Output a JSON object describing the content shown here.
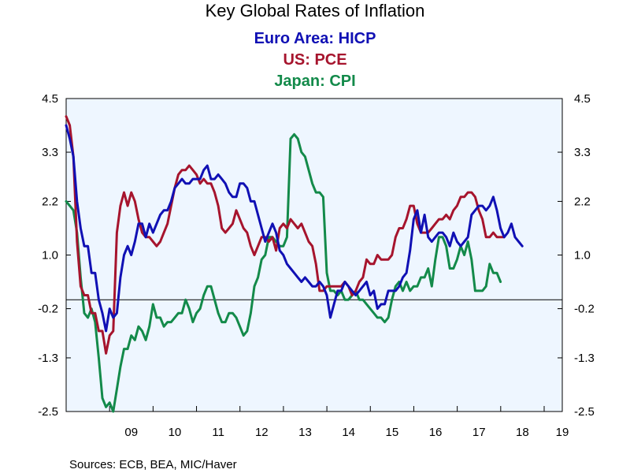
{
  "chart_data": {
    "type": "line",
    "title": "Key Global Rates of Inflation",
    "subtitles": [
      {
        "text": "Euro Area: HICP",
        "color": "#1010b4"
      },
      {
        "text": "US: PCE",
        "color": "#a6142d"
      },
      {
        "text": "Japan: CPI",
        "color": "#138a4a"
      }
    ],
    "source": "Sources:  ECB, BEA, MIC/Haver",
    "ylim": [
      -2.5,
      4.5
    ],
    "yticks": [
      "4.5",
      "3.3",
      "2.2",
      "1.0",
      "-0.2",
      "-1.3",
      "-2.5"
    ],
    "ytick_values": [
      4.5,
      3.3,
      2.2,
      1.0,
      -0.2,
      -1.3,
      -2.5
    ],
    "xlim": [
      2008.0,
      2019.417
    ],
    "xticks": [
      "09",
      "10",
      "11",
      "12",
      "13",
      "14",
      "15",
      "16",
      "17",
      "18",
      "19"
    ],
    "xtick_positions": [
      2009.5,
      2010.5,
      2011.5,
      2012.5,
      2013.5,
      2014.5,
      2015.5,
      2016.5,
      2017.5,
      2018.5,
      2019.417
    ],
    "zero_line": 0,
    "plot_background": "#eef6ff",
    "series": [
      {
        "name": "Euro Area: HICP",
        "color": "#1010b4",
        "start": 2008.0,
        "step": 0.0833,
        "values": [
          3.9,
          3.6,
          3.2,
          2.2,
          1.6,
          1.2,
          1.2,
          0.6,
          0.6,
          0.0,
          -0.3,
          -0.7,
          -0.2,
          -0.4,
          -0.3,
          0.5,
          1.0,
          1.2,
          1.0,
          1.3,
          1.7,
          1.7,
          1.4,
          1.7,
          1.5,
          1.7,
          1.9,
          2.0,
          2.0,
          2.2,
          2.5,
          2.6,
          2.7,
          2.6,
          2.6,
          2.7,
          2.7,
          2.7,
          2.9,
          3.0,
          2.7,
          2.7,
          2.8,
          2.7,
          2.6,
          2.4,
          2.3,
          2.3,
          2.6,
          2.6,
          2.5,
          2.2,
          2.2,
          1.9,
          1.6,
          1.3,
          1.5,
          1.7,
          1.5,
          1.1,
          1.0,
          0.8,
          0.7,
          0.6,
          0.5,
          0.4,
          0.5,
          0.4,
          0.3,
          0.3,
          0.4,
          0.3,
          0.1,
          -0.4,
          -0.1,
          0.2,
          0.2,
          0.4,
          0.3,
          0.2,
          0.1,
          0.2,
          0.3,
          0.4,
          0.1,
          0.2,
          -0.2,
          -0.1,
          -0.1,
          0.2,
          0.2,
          0.2,
          0.3,
          0.5,
          0.6,
          1.1,
          1.8,
          2.0,
          1.5,
          1.9,
          1.4,
          1.3,
          1.4,
          1.5,
          1.5,
          1.4,
          1.2,
          1.5,
          1.3,
          1.2,
          1.3,
          1.4,
          1.9,
          2.0,
          2.1,
          2.1,
          2.0,
          2.1,
          2.3,
          2.0,
          1.6,
          1.4,
          1.5,
          1.7,
          1.4,
          1.3,
          1.2
        ]
      },
      {
        "name": "US: PCE",
        "color": "#a6142d",
        "start": 2008.0,
        "step": 0.0833,
        "values": [
          4.1,
          3.9,
          3.2,
          1.3,
          0.3,
          0.1,
          0.1,
          -0.3,
          -0.3,
          -0.7,
          -0.7,
          -1.2,
          -0.8,
          -0.7,
          1.5,
          2.1,
          2.4,
          2.1,
          2.4,
          2.2,
          1.8,
          1.5,
          1.4,
          1.4,
          1.3,
          1.2,
          1.3,
          1.5,
          1.7,
          2.1,
          2.5,
          2.8,
          2.9,
          2.9,
          3.0,
          2.9,
          2.8,
          2.6,
          2.7,
          2.6,
          2.6,
          2.4,
          2.1,
          1.6,
          1.5,
          1.6,
          1.7,
          2.0,
          1.8,
          1.6,
          1.5,
          1.2,
          1.0,
          1.2,
          1.4,
          1.4,
          1.3,
          1.4,
          1.1,
          1.6,
          1.7,
          1.6,
          1.8,
          1.7,
          1.6,
          1.7,
          1.5,
          1.3,
          1.2,
          0.8,
          0.2,
          0.2,
          0.3,
          0.3,
          0.3,
          0.3,
          0.3,
          0.4,
          0.3,
          0.1,
          0.2,
          0.4,
          0.5,
          0.9,
          0.8,
          0.8,
          1.0,
          0.9,
          0.9,
          0.9,
          1.0,
          1.4,
          1.6,
          1.6,
          1.8,
          2.1,
          2.1,
          1.7,
          1.5,
          1.5,
          1.5,
          1.6,
          1.7,
          1.8,
          1.8,
          1.9,
          1.8,
          2.0,
          2.1,
          2.3,
          2.3,
          2.4,
          2.4,
          2.3,
          2.0,
          1.8,
          1.4,
          1.4,
          1.5,
          1.4,
          1.4,
          1.4
        ]
      },
      {
        "name": "Japan: CPI",
        "color": "#138a4a",
        "start": 2008.0,
        "step": 0.0833,
        "values": [
          2.2,
          2.1,
          2.0,
          1.5,
          0.5,
          -0.3,
          -0.4,
          -0.2,
          -0.5,
          -1.3,
          -2.2,
          -2.4,
          -2.3,
          -2.5,
          -2.0,
          -1.5,
          -1.1,
          -1.1,
          -0.8,
          -0.9,
          -0.6,
          -0.7,
          -0.9,
          -0.6,
          -0.1,
          -0.4,
          -0.4,
          -0.6,
          -0.5,
          -0.5,
          -0.4,
          -0.3,
          -0.3,
          0.0,
          -0.2,
          -0.5,
          -0.3,
          -0.2,
          0.1,
          0.3,
          0.3,
          0.0,
          -0.3,
          -0.5,
          -0.5,
          -0.3,
          -0.3,
          -0.4,
          -0.6,
          -0.8,
          -0.7,
          -0.3,
          0.3,
          0.5,
          0.9,
          1.0,
          1.4,
          1.4,
          1.3,
          1.2,
          1.2,
          1.4,
          3.6,
          3.7,
          3.6,
          3.3,
          3.2,
          2.9,
          2.6,
          2.4,
          2.4,
          2.3,
          0.6,
          0.2,
          0.2,
          0.1,
          0.2,
          0.0,
          0.0,
          0.1,
          0.2,
          0.0,
          0.0,
          -0.1,
          -0.2,
          -0.3,
          -0.4,
          -0.4,
          -0.5,
          -0.4,
          0.0,
          0.3,
          0.4,
          0.2,
          0.4,
          0.2,
          0.3,
          0.3,
          0.5,
          0.5,
          0.7,
          0.3,
          0.9,
          1.4,
          1.4,
          1.2,
          0.7,
          0.7,
          0.9,
          1.2,
          1.0,
          1.3,
          0.9,
          0.2,
          0.2,
          0.2,
          0.3,
          0.8,
          0.6,
          0.6,
          0.4
        ]
      }
    ]
  }
}
